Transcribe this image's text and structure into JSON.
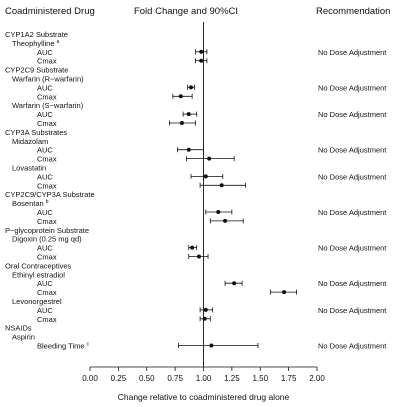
{
  "chart_data": {
    "type": "forest",
    "headers": {
      "drug": "Coadministered Drug",
      "fold": "Fold Change and 90%CI",
      "rec": "Recommendation"
    },
    "xlabel": "Change relative to coadministered drug alone",
    "xlim": [
      0.0,
      2.0
    ],
    "xticks": [
      "0.00",
      "0.25",
      "0.50",
      "0.75",
      "1.00",
      "1.25",
      "1.50",
      "1.75",
      "2.00"
    ],
    "reference_line": 1.0,
    "rows": [
      {
        "kind": "heading",
        "label": "CYP1A2 Substrate"
      },
      {
        "kind": "subheading",
        "label": "Theophylline",
        "sup": "a"
      },
      {
        "kind": "data",
        "label": "AUC",
        "value": 0.98,
        "lo": 0.93,
        "hi": 1.03,
        "rec": "No Dose Adjustment"
      },
      {
        "kind": "data",
        "label": "Cmax",
        "value": 0.98,
        "lo": 0.93,
        "hi": 1.03
      },
      {
        "kind": "heading",
        "label": "CYP2C9 Substrate"
      },
      {
        "kind": "subheading",
        "label": "Warfarin (R−warfarin)"
      },
      {
        "kind": "data",
        "label": "AUC",
        "value": 0.89,
        "lo": 0.86,
        "hi": 0.92,
        "rec": "No Dose Adjustment"
      },
      {
        "kind": "data",
        "label": "Cmax",
        "value": 0.8,
        "lo": 0.73,
        "hi": 0.9
      },
      {
        "kind": "subheading",
        "label": "Warfarin (S−warfarin)"
      },
      {
        "kind": "data",
        "label": "AUC",
        "value": 0.87,
        "lo": 0.82,
        "hi": 0.94,
        "rec": "No Dose Adjustment"
      },
      {
        "kind": "data",
        "label": "Cmax",
        "value": 0.81,
        "lo": 0.7,
        "hi": 0.93
      },
      {
        "kind": "heading",
        "label": "CYP3A Substrates"
      },
      {
        "kind": "subheading",
        "label": "Midazolam"
      },
      {
        "kind": "data",
        "label": "AUC",
        "value": 0.87,
        "lo": 0.77,
        "hi": 1.0,
        "rec": "No Dose Adjustment"
      },
      {
        "kind": "data",
        "label": "Cmax",
        "value": 1.05,
        "lo": 0.85,
        "hi": 1.27
      },
      {
        "kind": "subheading",
        "label": "Lovastatin"
      },
      {
        "kind": "data",
        "label": "AUC",
        "value": 1.02,
        "lo": 0.89,
        "hi": 1.17,
        "rec": "No Dose Adjustment"
      },
      {
        "kind": "data",
        "label": "Cmax",
        "value": 1.16,
        "lo": 0.97,
        "hi": 1.37
      },
      {
        "kind": "heading",
        "label": "CYP2C9/CYP3A Substrate"
      },
      {
        "kind": "subheading",
        "label": "Bosentan",
        "sup": "b"
      },
      {
        "kind": "data",
        "label": "AUC",
        "value": 1.13,
        "lo": 1.02,
        "hi": 1.25,
        "rec": "No Dose Adjustment"
      },
      {
        "kind": "data",
        "label": "Cmax",
        "value": 1.19,
        "lo": 1.06,
        "hi": 1.35
      },
      {
        "kind": "heading",
        "label": "P−glycoprotein Substrate"
      },
      {
        "kind": "subheading",
        "label": "Digoxin (0.25 mg qd)"
      },
      {
        "kind": "data",
        "label": "AUC",
        "value": 0.9,
        "lo": 0.87,
        "hi": 0.94,
        "rec": "No Dose Adjustment"
      },
      {
        "kind": "data",
        "label": "Cmax",
        "value": 0.96,
        "lo": 0.87,
        "hi": 1.04
      },
      {
        "kind": "heading",
        "label": "Oral Contraceptives"
      },
      {
        "kind": "subheading",
        "label": "Ethinyl estradiol"
      },
      {
        "kind": "data",
        "label": "AUC",
        "value": 1.27,
        "lo": 1.19,
        "hi": 1.34,
        "rec": "No Dose Adjustment"
      },
      {
        "kind": "data",
        "label": "Cmax",
        "value": 1.71,
        "lo": 1.59,
        "hi": 1.82
      },
      {
        "kind": "subheading",
        "label": "Levonorgestrel"
      },
      {
        "kind": "data",
        "label": "AUC",
        "value": 1.02,
        "lo": 0.97,
        "hi": 1.08,
        "rec": "No Dose Adjustment"
      },
      {
        "kind": "data",
        "label": "Cmax",
        "value": 1.01,
        "lo": 0.97,
        "hi": 1.06
      },
      {
        "kind": "heading",
        "label": "NSAIDs"
      },
      {
        "kind": "subheading",
        "label": "Aspirin"
      },
      {
        "kind": "data",
        "label": "Bleeding Time",
        "sup": "c",
        "value": 1.07,
        "lo": 0.78,
        "hi": 1.48,
        "rec": "No Dose Adjustment"
      }
    ]
  }
}
